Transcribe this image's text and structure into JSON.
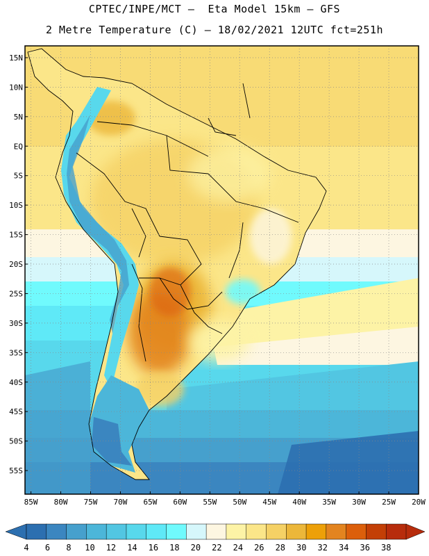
{
  "title_line1": "CPTEC/INPE/MCT –  Eta Model 15km – GFS",
  "title_line2": "2 Metre Temperature (C) – 18/02/2021 12UTC fct=251h",
  "map": {
    "lon_range": [
      -86,
      -20
    ],
    "lat_range": [
      -59,
      17
    ],
    "lat_ticks": [
      "15N",
      "10N",
      "5N",
      "EQ",
      "5S",
      "10S",
      "15S",
      "20S",
      "25S",
      "30S",
      "35S",
      "40S",
      "45S",
      "50S",
      "55S"
    ],
    "lat_values": [
      15,
      10,
      5,
      0,
      -5,
      -10,
      -15,
      -20,
      -25,
      -30,
      -35,
      -40,
      -45,
      -50,
      -55
    ],
    "lon_ticks": [
      "85W",
      "80W",
      "75W",
      "70W",
      "65W",
      "60W",
      "55W",
      "50W",
      "45W",
      "40W",
      "35W",
      "30W",
      "25W",
      "20W"
    ],
    "lon_values": [
      -85,
      -80,
      -75,
      -70,
      -65,
      -60,
      -55,
      -50,
      -45,
      -40,
      -35,
      -30,
      -25,
      -20
    ],
    "grid": "dotted"
  },
  "colorbar": {
    "labels": [
      "4",
      "6",
      "8",
      "10",
      "12",
      "14",
      "16",
      "18",
      "20",
      "22",
      "24",
      "26",
      "28",
      "30",
      "32",
      "34",
      "36",
      "38"
    ],
    "colors": [
      "#2c6fb0",
      "#3b86c0",
      "#46a0cd",
      "#4cb6d9",
      "#52c6e2",
      "#58d8ec",
      "#5fe9f7",
      "#70fafd",
      "#d6f7fb",
      "#fdf6e1",
      "#fdf3a6",
      "#fbe689",
      "#f5d165",
      "#ecb73a",
      "#eda008",
      "#e3841f",
      "#dc5f0b",
      "#c33f06",
      "#b72c0c"
    ],
    "low_extend_color": "#2c6fb0",
    "high_extend_color": "#b72c0c"
  }
}
